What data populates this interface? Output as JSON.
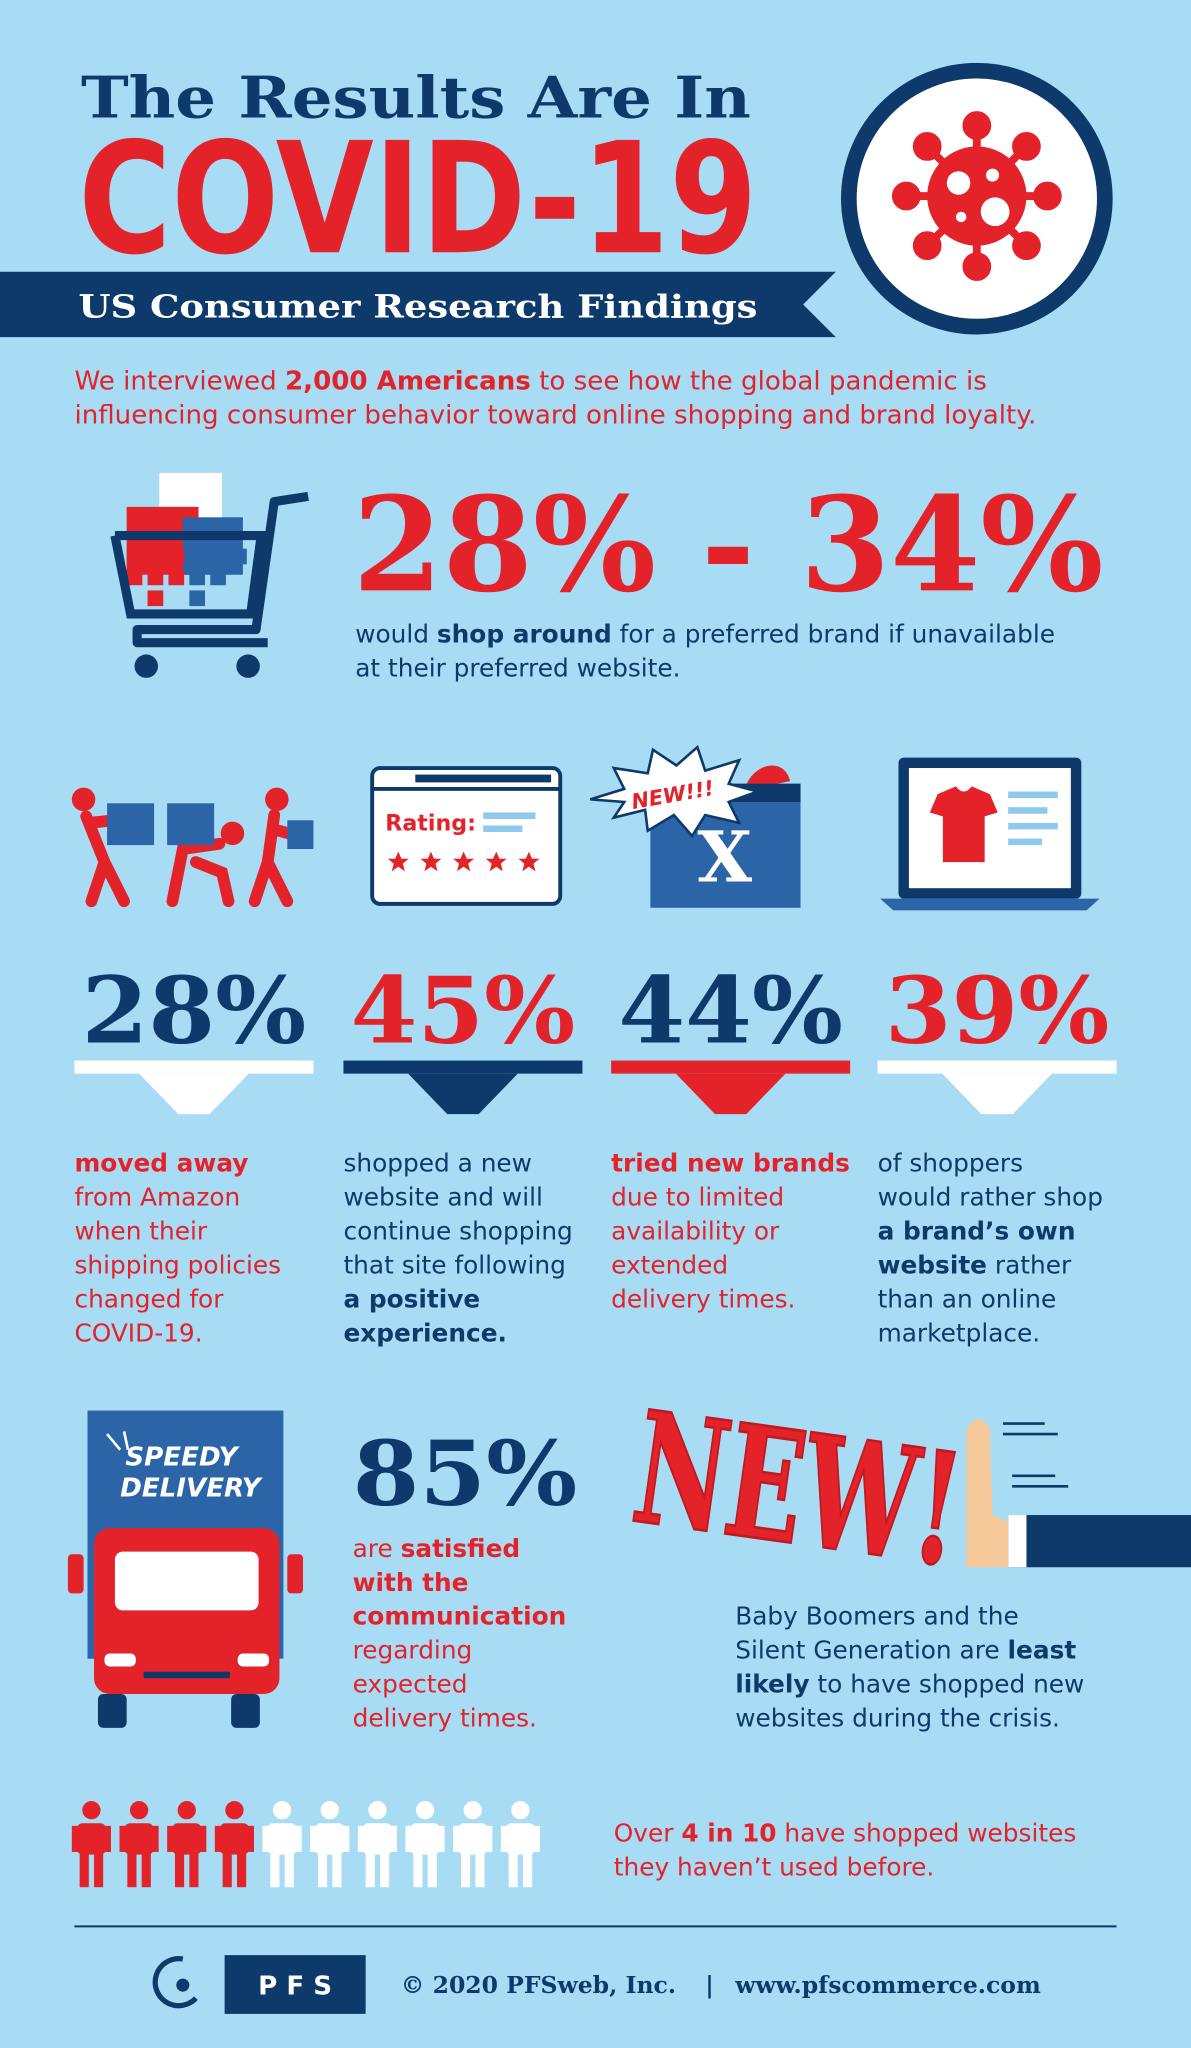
{
  "header": {
    "title": "The Results Are In",
    "headline": "COVID-19",
    "subtitle": "US Consumer Research Findings"
  },
  "intro": [
    [
      {
        "text": "We interviewed "
      },
      {
        "text": "2,000 Americans",
        "strong": true
      },
      {
        "text": " to see how the global pandemic is"
      }
    ],
    [
      {
        "text": "influencing consumer behavior toward online shopping and brand loyalty."
      }
    ]
  ],
  "highlight": {
    "value": "28% - 34%",
    "text": [
      [
        {
          "text": "would "
        },
        {
          "text": "shop around",
          "strong": true
        },
        {
          "text": " for a preferred brand if unavailable"
        }
      ],
      [
        {
          "text": "at their preferred website."
        }
      ]
    ]
  },
  "icons": {
    "rating_label": "Rating:",
    "new_tag": "NEW!!!",
    "box_letter": "X",
    "truck_label": [
      "SPEEDY",
      "DELIVERY"
    ],
    "new_big": "NEW!"
  },
  "stats": [
    {
      "value": "28%",
      "color": "#0e3a6b",
      "bar_color": "#ffffff",
      "text_color": "#e42229",
      "text": [
        [
          {
            "text": "moved away",
            "strong": true
          }
        ],
        [
          {
            "text": "from Amazon"
          }
        ],
        [
          {
            "text": "when their"
          }
        ],
        [
          {
            "text": "shipping policies"
          }
        ],
        [
          {
            "text": "changed for"
          }
        ],
        [
          {
            "text": "COVID-19."
          }
        ]
      ]
    },
    {
      "value": "45%",
      "color": "#e42229",
      "bar_color": "#0e3a6b",
      "text_color": "#0e3a6b",
      "text": [
        [
          {
            "text": "shopped a new"
          }
        ],
        [
          {
            "text": "website and will"
          }
        ],
        [
          {
            "text": "continue shopping"
          }
        ],
        [
          {
            "text": "that site following"
          }
        ],
        [
          {
            "text": "a positive",
            "strong": true
          }
        ],
        [
          {
            "text": "experience.",
            "strong": true
          }
        ]
      ]
    },
    {
      "value": "44%",
      "color": "#0e3a6b",
      "bar_color": "#e42229",
      "text_color": "#e42229",
      "text": [
        [
          {
            "text": "tried new brands",
            "strong": true
          }
        ],
        [
          {
            "text": "due to limited"
          }
        ],
        [
          {
            "text": "availability or"
          }
        ],
        [
          {
            "text": "extended"
          }
        ],
        [
          {
            "text": "delivery times."
          }
        ]
      ]
    },
    {
      "value": "39%",
      "color": "#e42229",
      "bar_color": "#ffffff",
      "text_color": "#0e3a6b",
      "text": [
        [
          {
            "text": "of shoppers"
          }
        ],
        [
          {
            "text": "would rather shop"
          }
        ],
        [
          {
            "text": "a brand’s own",
            "strong": true
          }
        ],
        [
          {
            "text": "website",
            "strong": true
          },
          {
            "text": " rather"
          }
        ],
        [
          {
            "text": "than an online"
          }
        ],
        [
          {
            "text": "marketplace."
          }
        ]
      ]
    }
  ],
  "delivery": {
    "value": "85%",
    "text": [
      [
        {
          "text": "are "
        },
        {
          "text": "satisfied",
          "strong": true
        }
      ],
      [
        {
          "text": "with the",
          "strong": true
        }
      ],
      [
        {
          "text": "communication",
          "strong": true
        }
      ],
      [
        {
          "text": "regarding"
        }
      ],
      [
        {
          "text": "expected"
        }
      ],
      [
        {
          "text": "delivery times."
        }
      ]
    ]
  },
  "boomers": [
    [
      {
        "text": "Baby Boomers and the"
      }
    ],
    [
      {
        "text": "Silent Generation are "
      },
      {
        "text": "least",
        "strong": true
      }
    ],
    [
      {
        "text": "likely",
        "strong": true
      },
      {
        "text": " to have shopped new"
      }
    ],
    [
      {
        "text": "websites during the crisis."
      }
    ]
  ],
  "people": {
    "count": 10,
    "highlighted": 4
  },
  "over": [
    [
      {
        "text": "Over "
      },
      {
        "text": "4 in 10",
        "strong": true
      },
      {
        "text": " have shopped websites"
      }
    ],
    [
      {
        "text": "they haven’t used before."
      }
    ]
  ],
  "footer": {
    "logo": "P F S",
    "copyright": "© 2020 PFSweb, Inc.",
    "separator": "|",
    "url": "www.pfscommerce.com"
  }
}
